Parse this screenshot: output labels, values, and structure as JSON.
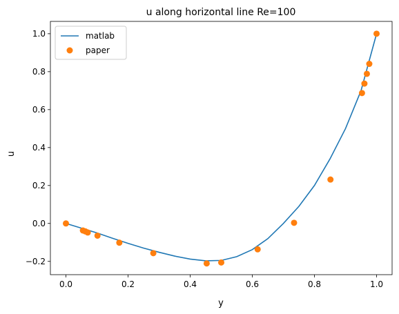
{
  "chart_data": {
    "type": "line",
    "title": "u along horizontal line Re=100",
    "xlabel": "y",
    "ylabel": "u",
    "xlim": [
      -0.05,
      1.05
    ],
    "ylim": [
      -0.27,
      1.065
    ],
    "xticks": [
      0.0,
      0.2,
      0.4,
      0.6,
      0.8,
      1.0
    ],
    "xtick_labels": [
      "0.0",
      "0.2",
      "0.4",
      "0.6",
      "0.8",
      "1.0"
    ],
    "yticks": [
      -0.2,
      0.0,
      0.2,
      0.4,
      0.6,
      0.8,
      1.0
    ],
    "ytick_labels": [
      "−0.2",
      "0.0",
      "0.2",
      "0.4",
      "0.6",
      "0.8",
      "1.0"
    ],
    "grid": false,
    "legend_position": "upper-left",
    "series": [
      {
        "name": "matlab",
        "kind": "line",
        "color": "#1f77b4",
        "x": [
          0.0,
          0.05,
          0.1,
          0.15,
          0.2,
          0.25,
          0.3,
          0.35,
          0.4,
          0.45,
          0.5,
          0.55,
          0.6,
          0.65,
          0.7,
          0.75,
          0.8,
          0.85,
          0.9,
          0.95,
          1.0
        ],
        "y": [
          0.0,
          -0.025,
          -0.05,
          -0.078,
          -0.105,
          -0.13,
          -0.152,
          -0.172,
          -0.188,
          -0.197,
          -0.195,
          -0.175,
          -0.138,
          -0.08,
          0.0,
          0.09,
          0.2,
          0.34,
          0.5,
          0.7,
          1.0
        ]
      },
      {
        "name": "paper",
        "kind": "scatter",
        "color": "#ff7f0e",
        "x": [
          0.0,
          0.0547,
          0.0625,
          0.0703,
          0.1016,
          0.1719,
          0.2813,
          0.4531,
          0.5,
          0.6172,
          0.7344,
          0.8516,
          0.9531,
          0.9609,
          0.9688,
          0.9766,
          1.0
        ],
        "y": [
          0.0,
          -0.0372,
          -0.0419,
          -0.0478,
          -0.0643,
          -0.1015,
          -0.1566,
          -0.2109,
          -0.2058,
          -0.1364,
          0.0033,
          0.2315,
          0.6872,
          0.7372,
          0.7887,
          0.8412,
          1.0
        ]
      }
    ]
  }
}
